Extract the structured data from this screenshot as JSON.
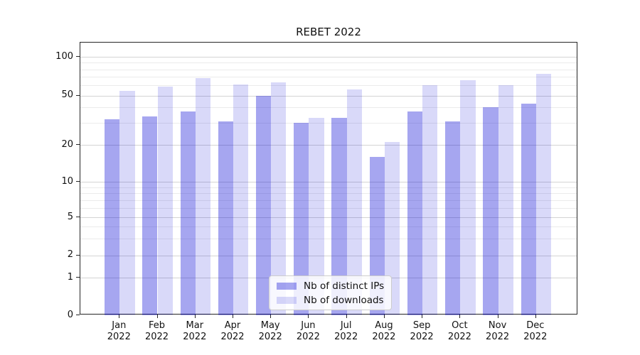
{
  "colors": {
    "bar_ips": "rgba(0,0,213,0.35)",
    "bar_downloads": "rgba(0,0,213,0.15)",
    "grid_major": "#d4d4d4",
    "grid_minor": "#ebebeb",
    "spine": "#262626"
  },
  "legend": {
    "items": [
      {
        "label": "Nb of distinct IPs",
        "swatch": "ips-swatch"
      },
      {
        "label": "Nb of downloads",
        "swatch": "downloads-swatch"
      }
    ]
  },
  "chart_data": {
    "type": "bar",
    "title": "REBET 2022",
    "categories": [
      "Jan 2022",
      "Feb 2022",
      "Mar 2022",
      "Apr 2022",
      "May 2022",
      "Jun 2022",
      "Jul 2022",
      "Aug 2022",
      "Sep 2022",
      "Oct 2022",
      "Nov 2022",
      "Dec 2022"
    ],
    "series": [
      {
        "name": "Nb of distinct IPs",
        "values": [
          32,
          34,
          37,
          31,
          50,
          30,
          33,
          16,
          37,
          31,
          40,
          43
        ]
      },
      {
        "name": "Nb of downloads",
        "values": [
          54,
          59,
          68,
          61,
          63,
          33,
          56,
          21,
          60,
          66,
          60,
          74
        ]
      }
    ],
    "xlabel": "",
    "ylabel": "",
    "yscale": "symlog-like",
    "yticks": [
      100,
      50,
      20,
      10,
      5,
      2,
      1,
      0
    ],
    "ylim": [
      0,
      130
    ],
    "grid": "on",
    "legend_position": "lower center"
  }
}
